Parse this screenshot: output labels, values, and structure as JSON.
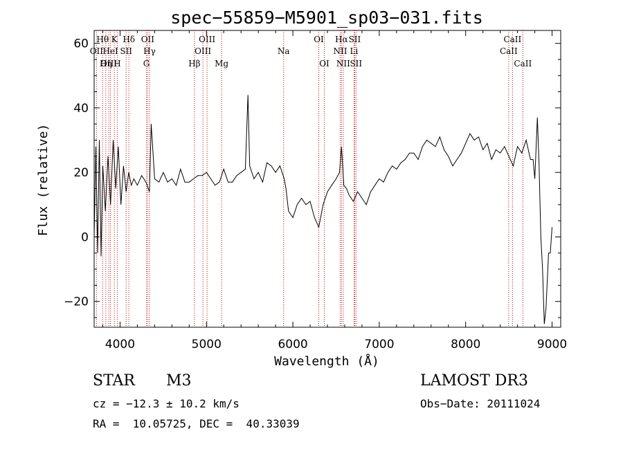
{
  "chart_data": {
    "type": "line",
    "title": "spec−55859−M5901_sp03−031.fits",
    "xlabel": "Wavelength (Å)",
    "ylabel": "Flux (relative)",
    "xlim": [
      3700,
      9100
    ],
    "ylim": [
      -28,
      64
    ],
    "x_ticks": [
      4000,
      5000,
      6000,
      7000,
      8000,
      9000
    ],
    "x_tick_labels": [
      "4000",
      "5000",
      "6000",
      "7000",
      "8000",
      "9000"
    ],
    "y_ticks": [
      -20,
      0,
      20,
      40,
      60
    ],
    "y_tick_labels": [
      "−20",
      "0",
      "20",
      "40",
      "60"
    ],
    "series": [
      {
        "name": "spectrum",
        "x": [
          3700,
          3720,
          3740,
          3760,
          3780,
          3800,
          3830,
          3860,
          3890,
          3920,
          3950,
          3980,
          4010,
          4040,
          4070,
          4100,
          4130,
          4160,
          4200,
          4250,
          4300,
          4340,
          4360,
          4400,
          4450,
          4500,
          4550,
          4600,
          4650,
          4700,
          4750,
          4800,
          4850,
          4900,
          4950,
          5000,
          5050,
          5100,
          5150,
          5200,
          5250,
          5300,
          5350,
          5400,
          5450,
          5480,
          5500,
          5550,
          5600,
          5650,
          5700,
          5750,
          5800,
          5850,
          5900,
          5920,
          5950,
          6000,
          6050,
          6100,
          6150,
          6200,
          6250,
          6300,
          6350,
          6400,
          6450,
          6500,
          6540,
          6563,
          6590,
          6620,
          6650,
          6700,
          6750,
          6800,
          6850,
          6900,
          6950,
          7000,
          7050,
          7100,
          7150,
          7200,
          7250,
          7300,
          7350,
          7400,
          7450,
          7500,
          7550,
          7600,
          7650,
          7700,
          7750,
          7800,
          7850,
          7900,
          7950,
          8000,
          8050,
          8100,
          8150,
          8200,
          8250,
          8300,
          8350,
          8400,
          8450,
          8500,
          8550,
          8600,
          8650,
          8700,
          8750,
          8780,
          8800,
          8830,
          8850,
          8870,
          8890,
          8910,
          8930,
          8960,
          8980,
          9000
        ],
        "values": [
          0,
          28,
          -5,
          30,
          -6,
          22,
          8,
          25,
          10,
          30,
          15,
          28,
          10,
          22,
          14,
          20,
          16,
          18,
          16,
          19,
          17,
          14,
          35,
          18,
          17,
          20,
          17,
          18,
          16,
          21,
          17,
          17,
          18,
          19,
          19,
          20,
          18,
          16,
          17,
          21,
          17,
          17,
          19,
          20,
          21,
          44,
          22,
          18,
          20,
          17,
          23,
          22,
          20,
          22,
          18,
          15,
          8,
          6,
          10,
          12,
          10,
          11,
          6,
          3,
          10,
          14,
          16,
          18,
          20,
          28,
          16,
          15,
          13,
          11,
          14,
          12,
          10,
          14,
          16,
          18,
          17,
          20,
          22,
          21,
          23,
          24,
          26,
          26,
          24,
          28,
          30,
          29,
          28,
          31,
          27,
          25,
          22,
          24,
          26,
          29,
          32,
          30,
          31,
          27,
          29,
          24,
          27,
          26,
          28,
          25,
          22,
          28,
          26,
          30,
          24,
          24,
          18,
          37,
          22,
          0,
          -10,
          -27,
          -22,
          -5,
          -5,
          3
        ]
      }
    ],
    "spectral_lines": [
      {
        "label": "Hθ",
        "wavelength": 3798,
        "row": 1
      },
      {
        "label": "OII",
        "wavelength": 3727,
        "row": 2
      },
      {
        "label": "OIII",
        "wavelength": 3869,
        "row": 3
      },
      {
        "label": "Hη",
        "wavelength": 3835,
        "row": 3
      },
      {
        "label": "HeI",
        "wavelength": 3889,
        "row": 2
      },
      {
        "label": "K",
        "wavelength": 3934,
        "row": 1
      },
      {
        "label": "SII",
        "wavelength": 4070,
        "row": 2
      },
      {
        "label": "H",
        "wavelength": 3968,
        "row": 3
      },
      {
        "label": "Hδ",
        "wavelength": 4102,
        "row": 1
      },
      {
        "label": "OII",
        "wavelength": 4320,
        "row": 1
      },
      {
        "label": "Hγ",
        "wavelength": 4341,
        "row": 2
      },
      {
        "label": "G",
        "wavelength": 4305,
        "row": 3
      },
      {
        "label": "Hβ",
        "wavelength": 4861,
        "row": 3
      },
      {
        "label": "OIII",
        "wavelength": 5007,
        "row": 1
      },
      {
        "label": "OIII",
        "wavelength": 4959,
        "row": 2
      },
      {
        "label": "Mg",
        "wavelength": 5175,
        "row": 3
      },
      {
        "label": "Na",
        "wavelength": 5893,
        "row": 2
      },
      {
        "label": "OI",
        "wavelength": 6300,
        "row": 1
      },
      {
        "label": "OI",
        "wavelength": 6364,
        "row": 3
      },
      {
        "label": "Hα",
        "wavelength": 6563,
        "row": 1
      },
      {
        "label": "SII",
        "wavelength": 6716,
        "row": 1
      },
      {
        "label": "NII",
        "wavelength": 6548,
        "row": 2
      },
      {
        "label": "Li",
        "wavelength": 6708,
        "row": 2
      },
      {
        "label": "NII",
        "wavelength": 6583,
        "row": 3
      },
      {
        "label": "SII",
        "wavelength": 6731,
        "row": 3
      },
      {
        "label": "CaII",
        "wavelength": 8542,
        "row": 1
      },
      {
        "label": "CaII",
        "wavelength": 8498,
        "row": 2
      },
      {
        "label": "CaII",
        "wavelength": 8662,
        "row": 3
      }
    ],
    "line_color": "#000000",
    "marker_color": "#c00000"
  },
  "info": {
    "object_type": "STAR",
    "subclass": "M3",
    "survey": "LAMOST DR3",
    "redshift_line": "cz = −12.3 ± 10.2 km/s",
    "obs_date": "Obs−Date: 20111024",
    "coords": "RA =  10.05725, DEC =  40.33039"
  }
}
